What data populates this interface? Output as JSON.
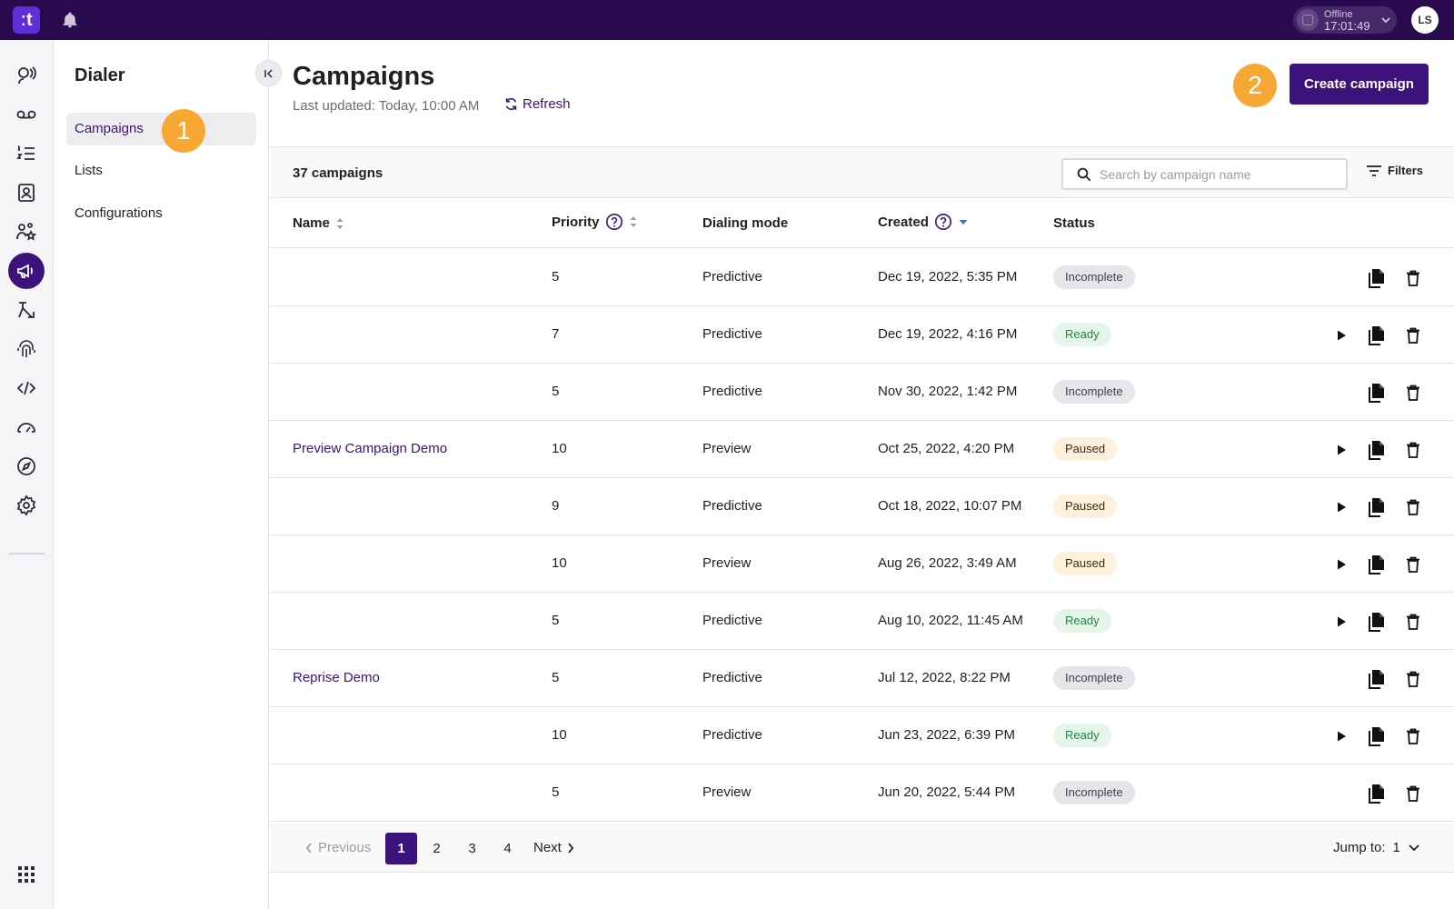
{
  "topbar": {
    "logo_text": "ːt",
    "status_label": "Offline",
    "status_time": "17:01:49",
    "avatar_initials": "LS"
  },
  "rail": {
    "items": [
      {
        "icon": "voice-agent-icon"
      },
      {
        "icon": "voicemail-icon"
      },
      {
        "icon": "numbered-list-icon"
      },
      {
        "icon": "contacts-icon"
      },
      {
        "icon": "team-skills-icon"
      },
      {
        "icon": "megaphone-icon",
        "active": true
      },
      {
        "icon": "routing-flow-icon"
      },
      {
        "icon": "fingerprint-icon"
      },
      {
        "icon": "code-icon"
      },
      {
        "icon": "speedometer-icon"
      },
      {
        "icon": "compass-icon"
      },
      {
        "icon": "settings-gear-icon"
      }
    ],
    "bottom_icon": "apps-grid-icon"
  },
  "sidebar": {
    "title": "Dialer",
    "items": [
      {
        "label": "Campaigns",
        "active": true
      },
      {
        "label": "Lists"
      },
      {
        "label": "Configurations"
      }
    ]
  },
  "markers": {
    "one": "1",
    "two": "2"
  },
  "header": {
    "title": "Campaigns",
    "last_updated": "Last updated: Today, 10:00 AM",
    "refresh_label": "Refresh",
    "create_label": "Create campaign"
  },
  "toolbar": {
    "count": "37 campaigns",
    "search_placeholder": "Search by campaign name",
    "filters_label": "Filters"
  },
  "table": {
    "columns": {
      "name": "Name",
      "priority": "Priority",
      "dialing_mode": "Dialing mode",
      "created": "Created",
      "status": "Status"
    },
    "rows": [
      {
        "name": "",
        "priority": "5",
        "mode": "Predictive",
        "created": "Dec 19, 2022, 5:35 PM",
        "status": "Incomplete",
        "playable": false
      },
      {
        "name": "",
        "priority": "7",
        "mode": "Predictive",
        "created": "Dec 19, 2022, 4:16 PM",
        "status": "Ready",
        "playable": true
      },
      {
        "name": "",
        "priority": "5",
        "mode": "Predictive",
        "created": "Nov 30, 2022, 1:42 PM",
        "status": "Incomplete",
        "playable": false
      },
      {
        "name": "Preview Campaign Demo",
        "priority": "10",
        "mode": "Preview",
        "created": "Oct 25, 2022, 4:20 PM",
        "status": "Paused",
        "playable": true
      },
      {
        "name": "",
        "priority": "9",
        "mode": "Predictive",
        "created": "Oct 18, 2022, 10:07 PM",
        "status": "Paused",
        "playable": true
      },
      {
        "name": "",
        "priority": "10",
        "mode": "Preview",
        "created": "Aug 26, 2022, 3:49 AM",
        "status": "Paused",
        "playable": true
      },
      {
        "name": "",
        "priority": "5",
        "mode": "Predictive",
        "created": "Aug 10, 2022, 11:45 AM",
        "status": "Ready",
        "playable": true
      },
      {
        "name": "Reprise Demo",
        "priority": "5",
        "mode": "Predictive",
        "created": "Jul 12, 2022, 8:22 PM",
        "status": "Incomplete",
        "playable": false
      },
      {
        "name": "",
        "priority": "10",
        "mode": "Predictive",
        "created": "Jun 23, 2022, 6:39 PM",
        "status": "Ready",
        "playable": true
      },
      {
        "name": "",
        "priority": "5",
        "mode": "Preview",
        "created": "Jun 20, 2022, 5:44 PM",
        "status": "Incomplete",
        "playable": false
      }
    ]
  },
  "pagination": {
    "previous": "Previous",
    "next": "Next",
    "pages": [
      "1",
      "2",
      "3",
      "4"
    ],
    "current": "1",
    "jump_label": "Jump to:",
    "jump_value": "1"
  },
  "colors": {
    "topbar": "#2a0a4e",
    "accent": "#3b137a",
    "marker": "#f7a733",
    "ready": "#1d8a45",
    "paused_bg": "#fdf1de",
    "incomplete_bg": "#e6e6ea"
  }
}
